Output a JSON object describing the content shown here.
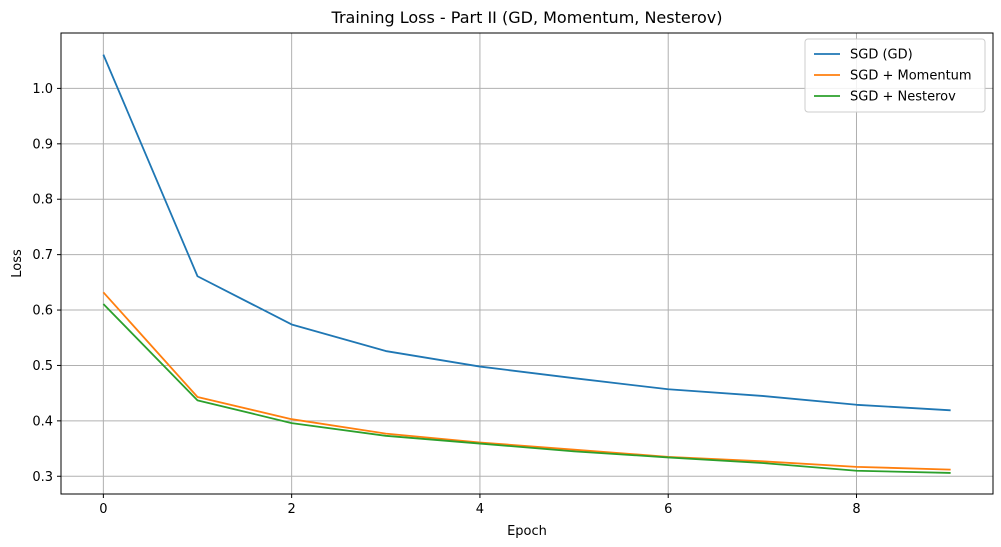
{
  "chart_data": {
    "type": "line",
    "title": "Training Loss - Part II (GD, Momentum, Nesterov)",
    "xlabel": "Epoch",
    "ylabel": "Loss",
    "xlim": [
      -0.45,
      9.45
    ],
    "ylim": [
      0.268,
      1.1
    ],
    "xticks": [
      0,
      2,
      4,
      6,
      8
    ],
    "yticks": [
      0.3,
      0.4,
      0.5,
      0.6,
      0.7,
      0.8,
      0.9,
      1.0
    ],
    "grid": true,
    "legend_position": "top-right",
    "x": [
      0,
      1,
      2,
      3,
      4,
      5,
      6,
      7,
      8,
      9
    ],
    "series": [
      {
        "name": "SGD (GD)",
        "color": "#1f77b4",
        "values": [
          1.061,
          0.661,
          0.574,
          0.526,
          0.498,
          0.477,
          0.457,
          0.445,
          0.429,
          0.419
        ]
      },
      {
        "name": "SGD + Momentum",
        "color": "#ff7f0e",
        "values": [
          0.632,
          0.443,
          0.403,
          0.377,
          0.361,
          0.348,
          0.335,
          0.327,
          0.317,
          0.312
        ]
      },
      {
        "name": "SGD + Nesterov",
        "color": "#2ca02c",
        "values": [
          0.611,
          0.437,
          0.396,
          0.373,
          0.359,
          0.345,
          0.334,
          0.324,
          0.31,
          0.306
        ]
      }
    ]
  }
}
